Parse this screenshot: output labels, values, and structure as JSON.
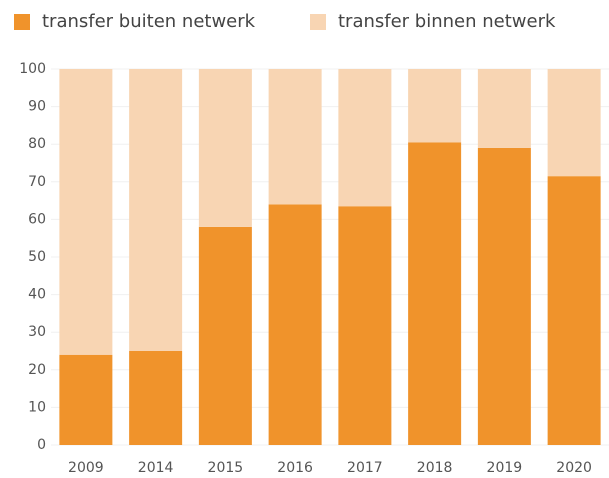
{
  "chart_data": {
    "type": "stacked_bar",
    "categories": [
      "2009",
      "2014",
      "2015",
      "2016",
      "2017",
      "2018",
      "2019",
      "2020"
    ],
    "series": [
      {
        "name": "transfer buiten netwerk",
        "color": "#f0932b",
        "values": [
          24,
          25,
          58,
          64,
          63.5,
          80.5,
          79,
          71.5
        ]
      },
      {
        "name": "transfer binnen netwerk",
        "color": "#f8d5b3",
        "values": [
          76,
          75,
          42,
          36,
          36.5,
          19.5,
          21,
          28.5
        ]
      }
    ],
    "ylim": [
      0,
      100
    ],
    "yticks": [
      0,
      10,
      20,
      30,
      40,
      50,
      60,
      70,
      80,
      90,
      100
    ],
    "grid": true,
    "legend": "top"
  }
}
